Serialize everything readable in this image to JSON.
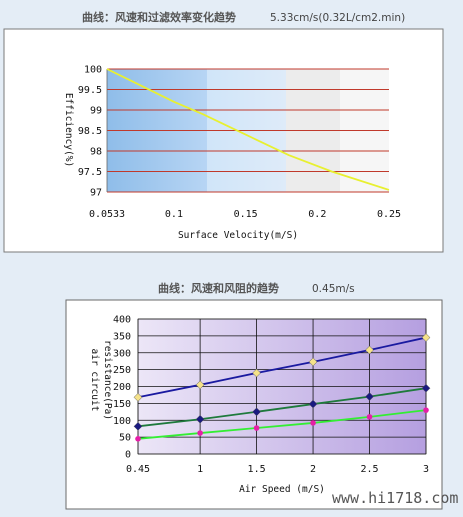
{
  "page": {
    "watermark": "www.hi1718.com"
  },
  "chart_data": [
    {
      "type": "line",
      "title": "曲线：风速和过滤效率变化趋势",
      "subtitle": "5.33cm/s(0.32L/cm2.min)",
      "xlabel": "Surface Velocity(m/S)",
      "ylabel": "Efficiency(%)",
      "x_tick_labels": [
        "0.0533",
        "0.1",
        "0.15",
        "0.2",
        "0.25"
      ],
      "x_ticks": [
        0.0533,
        0.1,
        0.15,
        0.2,
        0.25
      ],
      "xlim": [
        0.0533,
        0.25
      ],
      "y_tick_labels": [
        "100",
        "99.5",
        "99",
        "98.5",
        "98",
        "97.5",
        "97"
      ],
      "y_ticks": [
        100,
        99.5,
        99,
        98.5,
        98,
        97.5,
        97
      ],
      "ylim": [
        97,
        100
      ],
      "grid": true,
      "series": [
        {
          "color": "#e8f030",
          "x": [
            0.0533,
            0.1,
            0.12,
            0.15,
            0.18,
            0.21,
            0.25
          ],
          "values": [
            100,
            99.2,
            98.9,
            98.4,
            97.9,
            97.5,
            97.05
          ]
        }
      ],
      "colors": {
        "grid": "#c0392b",
        "bands": [
          "#99c4ef",
          "#bbd8f5",
          "#d9e9f9",
          "#ececec",
          "#f6f6f6"
        ]
      }
    },
    {
      "type": "line",
      "title": "曲线：风速和风阻的趋势",
      "subtitle": "0.45m/s",
      "xlabel": "Air Speed (m/S)",
      "ylabel": "air circuit resistance(Pa)",
      "ylabel_lines": [
        "air circuit",
        "resistance(Pa)"
      ],
      "x_tick_labels": [
        "0.45",
        "1",
        "1.5",
        "2",
        "2.5",
        "3"
      ],
      "x_ticks": [
        0.45,
        1,
        1.5,
        2,
        2.5,
        3
      ],
      "xlim": [
        0.45,
        3
      ],
      "y_tick_labels": [
        "400",
        "350",
        "300",
        "250",
        "200",
        "150",
        "100",
        "50",
        "0"
      ],
      "y_ticks": [
        400,
        350,
        300,
        250,
        200,
        150,
        100,
        50,
        0
      ],
      "ylim": [
        0,
        400
      ],
      "grid": true,
      "series": [
        {
          "color": "#1a1aa0",
          "marker": "diamond",
          "marker_color": "#f5e28a",
          "x": [
            0.45,
            1,
            1.5,
            2,
            2.5,
            3
          ],
          "values": [
            168,
            205,
            240,
            273,
            308,
            345
          ]
        },
        {
          "color": "#1e7a3c",
          "marker": "diamond",
          "marker_color": "#1a1a80",
          "x": [
            0.45,
            1,
            1.5,
            2,
            2.5,
            3
          ],
          "values": [
            82,
            103,
            125,
            148,
            170,
            195
          ]
        },
        {
          "color": "#33ee33",
          "marker": "circle",
          "marker_color": "#e61ea8",
          "x": [
            0.45,
            1,
            1.5,
            2,
            2.5,
            3
          ],
          "values": [
            45,
            62,
            77,
            92,
            110,
            130
          ]
        }
      ],
      "colors": {
        "plot_bg_left": "#e8e0f4",
        "plot_bg_right": "#b8a4e2",
        "grid": "#111111"
      }
    }
  ]
}
